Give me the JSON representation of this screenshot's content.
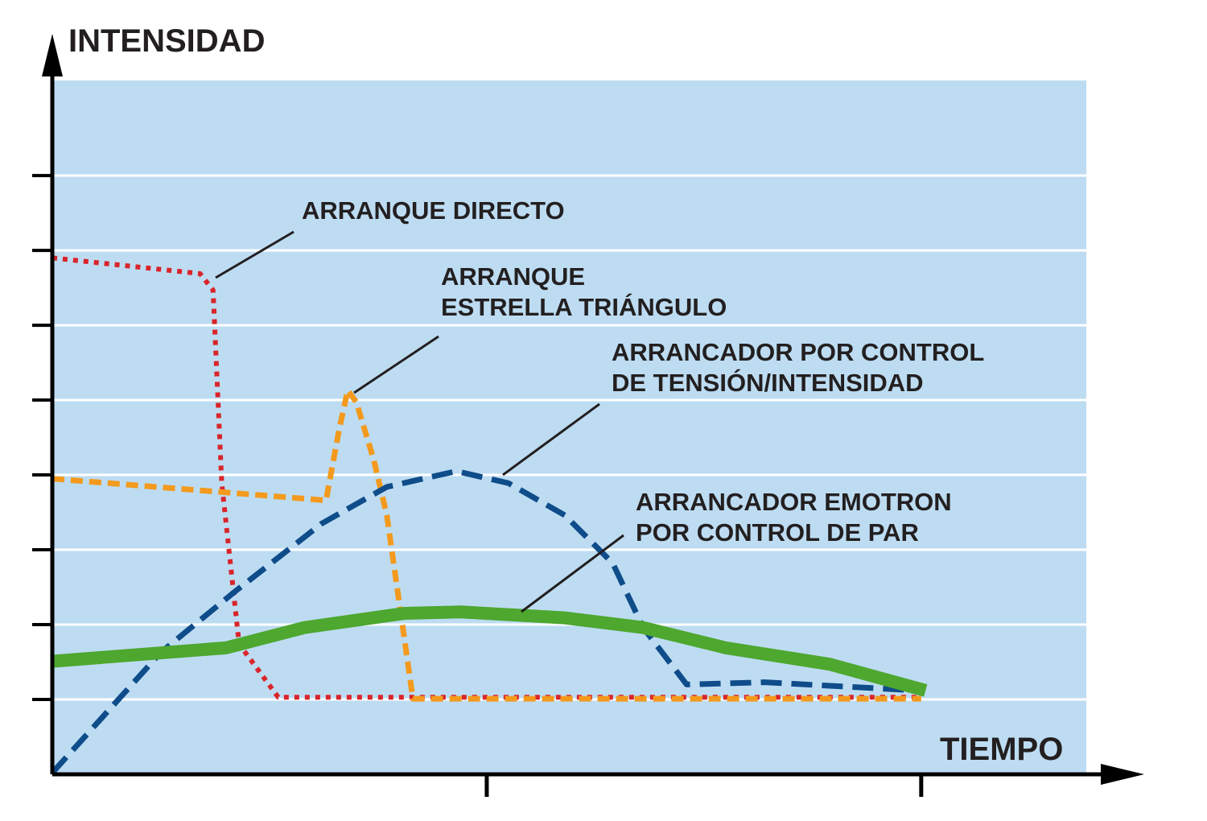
{
  "chart_data": {
    "type": "line",
    "y_label": "INTENSIDAD",
    "x_label": "TIEMPO",
    "xlim": [
      0,
      2.38
    ],
    "xticks": [
      1,
      2
    ],
    "ylim": [
      0,
      9.27
    ],
    "yticks": [
      1,
      2,
      3,
      4,
      5,
      6,
      7,
      8
    ],
    "grid": true,
    "background": "#bddcf2",
    "series": [
      {
        "name": [
          "ARRANQUE DIRECTO"
        ],
        "color": "#d9252a",
        "style": "dotted",
        "x": [
          0,
          0.34,
          0.37,
          0.39,
          0.43,
          0.52,
          2.0
        ],
        "values": [
          6.9,
          6.69,
          6.47,
          3.89,
          1.74,
          1.03,
          1.03
        ]
      },
      {
        "name": [
          "ARRANQUE",
          "ESTRELLA TRIÁNGULO"
        ],
        "color": "#f39a1e",
        "style": "dashed",
        "x": [
          0,
          0.63,
          0.66,
          0.68,
          0.7,
          0.74,
          0.77,
          0.83,
          2.0
        ],
        "values": [
          3.95,
          3.66,
          4.6,
          5.13,
          4.97,
          4.2,
          3.46,
          1.01,
          1.01
        ]
      },
      {
        "name": [
          "ARRANCADOR POR CONTROL",
          "DE TENSIÓN/INTENSIDAD"
        ],
        "color": "#0f4c8a",
        "style": "longdash",
        "x": [
          0,
          0.25,
          0.42,
          0.62,
          0.77,
          0.93,
          1.05,
          1.18,
          1.29,
          1.36,
          1.46,
          1.64,
          1.99
        ],
        "values": [
          0.02,
          1.63,
          2.44,
          3.35,
          3.84,
          4.05,
          3.89,
          3.46,
          2.82,
          1.96,
          1.2,
          1.23,
          1.12
        ]
      },
      {
        "name": [
          "ARRANCADOR EMOTRON",
          "POR CONTROL DE PAR"
        ],
        "color": "#4ea72e",
        "style": "solid",
        "x": [
          0,
          0.4,
          0.58,
          0.81,
          0.94,
          1.18,
          1.36,
          1.55,
          1.79,
          2.01
        ],
        "values": [
          1.51,
          1.69,
          1.96,
          2.15,
          2.17,
          2.09,
          1.96,
          1.69,
          1.47,
          1.12
        ]
      }
    ]
  }
}
